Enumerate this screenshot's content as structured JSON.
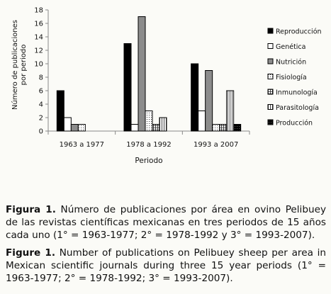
{
  "chart_data": {
    "type": "bar",
    "title": "",
    "xlabel": "Periodo",
    "ylabel": "Número de publicaciones por periodo",
    "ylim": [
      0,
      18
    ],
    "yticks": [
      0,
      2,
      4,
      6,
      8,
      10,
      12,
      14,
      16,
      18
    ],
    "categories": [
      "1963 a 1977",
      "1978 a 1992",
      "1993 a 2007"
    ],
    "legend_position": "right",
    "series": [
      {
        "name": "Reproducción",
        "values": [
          6,
          13,
          10
        ],
        "fill": "#000000",
        "pattern": "solid"
      },
      {
        "name": "Genética",
        "values": [
          2,
          1,
          3
        ],
        "fill": "#ffffff",
        "pattern": "solid"
      },
      {
        "name": "Nutrición",
        "values": [
          1,
          17,
          9
        ],
        "fill": "#8c8c8c",
        "pattern": "solid"
      },
      {
        "name": "Fisiología",
        "values": [
          1,
          3,
          1
        ],
        "fill": "#ffffff",
        "pattern": "dots"
      },
      {
        "name": "Inmunología",
        "values": [
          0,
          1,
          1
        ],
        "fill": "#ffffff",
        "pattern": "grid"
      },
      {
        "name": "Parasitología",
        "values": [
          0,
          2,
          6
        ],
        "fill": "#ffffff",
        "pattern": "vlines"
      },
      {
        "name": "Producción",
        "values": [
          0,
          0,
          1
        ],
        "fill": "#000000",
        "pattern": "darkdots"
      }
    ]
  },
  "caption_es": {
    "label": "Figura 1.",
    "text": " Número de publicaciones por área en ovino Pelibuey de las revistas científicas mexicanas en tres periodos de 15 años cada uno (1° = 1963-1977; 2° = 1978-1992 y 3° = 1993-2007)."
  },
  "caption_en": {
    "label": "Figure 1.",
    "text": " Number of publications on Pelibuey sheep per area in Mexican scientific journals during three 15 year periods (1° = 1963-1977; 2° = 1978-1992; 3° = 1993-2007)."
  }
}
